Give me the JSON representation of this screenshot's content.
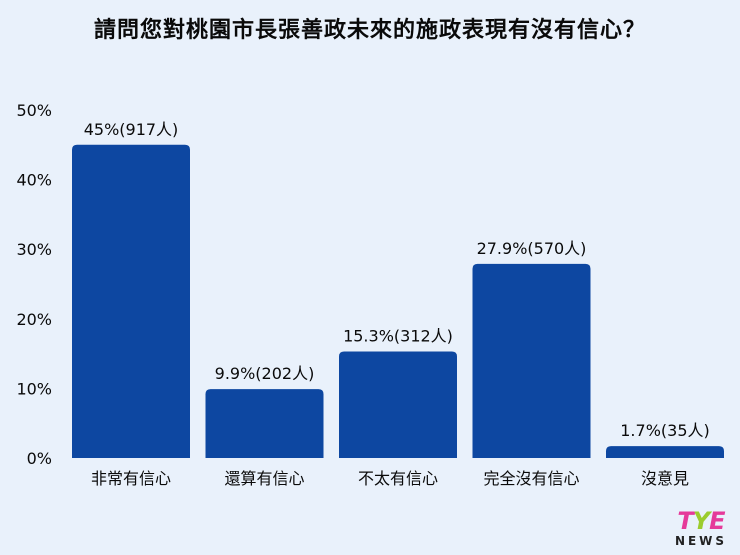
{
  "colors": {
    "bar": "#0d47a1",
    "background": "#e9f1fb",
    "text": "#0a0a0a"
  },
  "logo": {
    "brand_t": "T",
    "brand_y": "Y",
    "brand_e": "E",
    "sub": "NEWS"
  },
  "chart_data": {
    "type": "bar",
    "title": "請問您對桃園市長張善政未來的施政表現有沒有信心？",
    "categories": [
      "非常有信心",
      "還算有信心",
      "不太有信心",
      "完全沒有信心",
      "沒意見"
    ],
    "values": [
      45,
      9.9,
      15.3,
      27.9,
      1.7
    ],
    "data_labels": [
      "45%(917人)",
      "9.9%(202人)",
      "15.3%(312人)",
      "27.9%(570人)",
      "1.7%(35人)"
    ],
    "yticks": [
      "0%",
      "10%",
      "20%",
      "30%",
      "40%",
      "50%"
    ],
    "ylim": [
      0,
      50
    ],
    "grid": false,
    "legend": "none"
  }
}
